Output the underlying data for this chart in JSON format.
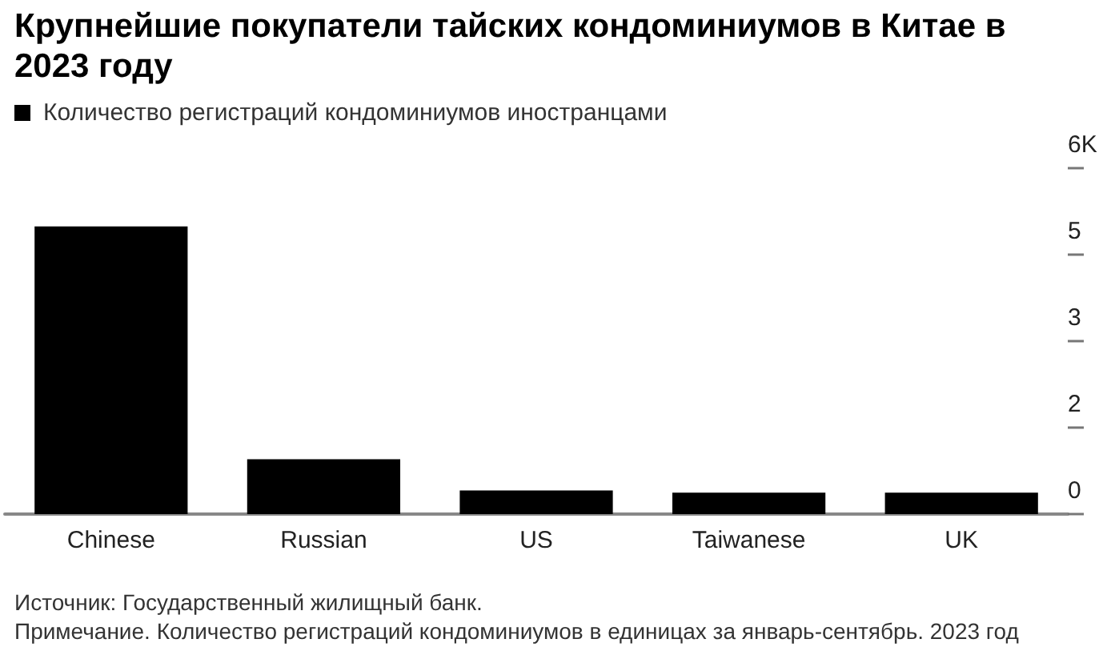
{
  "chart_data": {
    "type": "bar",
    "title": "Крупнейшие покупатели тайских кондоминиумов в Китае в 2023 году",
    "categories": [
      "Chinese",
      "Russian",
      "US",
      "Taiwanese",
      "UK"
    ],
    "series": [
      {
        "name": "Количество регистраций кондоминиумов иностранцами",
        "color": "#000000",
        "values": [
          4.99,
          0.95,
          0.41,
          0.37,
          0.37
        ]
      }
    ],
    "ylim": [
      0,
      6
    ],
    "yticks": [
      0,
      {
        "value": 1.5,
        "label": "2"
      },
      3,
      {
        "value": 4.5,
        "label": "5"
      },
      {
        "value": 6,
        "label": "6K"
      }
    ],
    "grid": false,
    "legend": "top left",
    "annotations": [
      "Источник: Государственный жилищный банк.",
      "Примечание. Количество регистраций кондоминиумов в единицах за январь-сентябрь. 2023 год"
    ]
  }
}
